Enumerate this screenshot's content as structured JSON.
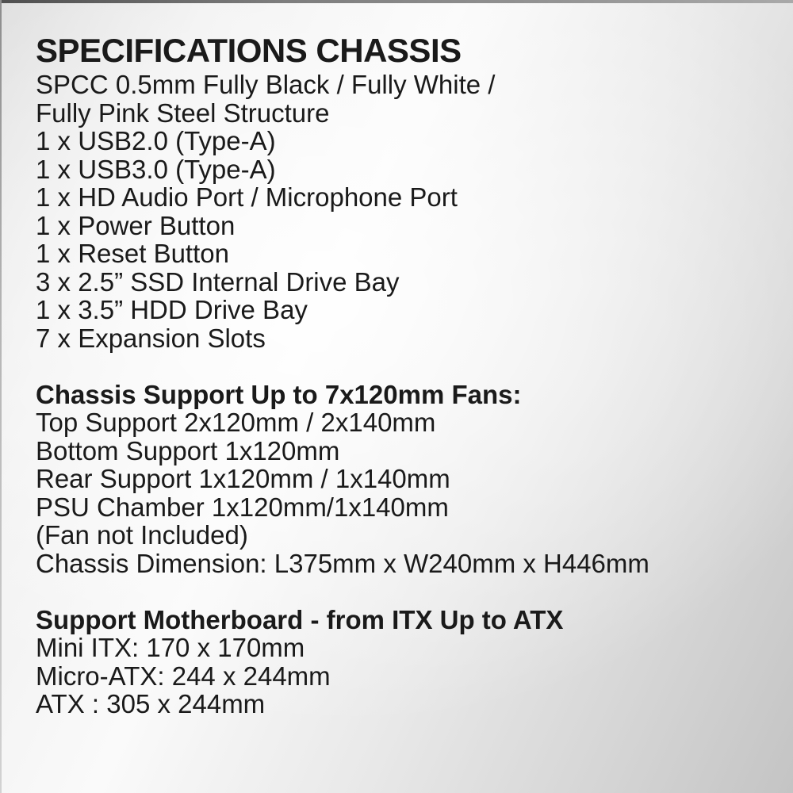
{
  "colors": {
    "text": "#1a1a1a",
    "background_light": "#fafafa",
    "background_dark": "#c4c4c4",
    "top_edge": "#4f4f4f"
  },
  "sections": {
    "chassis": {
      "title": "SPECIFICATIONS CHASSIS",
      "lines": [
        "SPCC 0.5mm Fully Black / Fully White /",
        "Fully Pink Steel Structure",
        "1 x USB2.0 (Type-A)",
        "1 x USB3.0 (Type-A)",
        "1 x HD Audio Port / Microphone Port",
        "1 x Power Button",
        "1 x Reset Button",
        "3 x 2.5” SSD Internal Drive Bay",
        "1 x 3.5” HDD Drive Bay",
        "7 x Expansion Slots"
      ]
    },
    "fans": {
      "header": "Chassis Support Up to 7x120mm Fans:",
      "lines": [
        "Top Support 2x120mm / 2x140mm",
        "Bottom Support 1x120mm",
        "Rear Support 1x120mm / 1x140mm",
        "PSU Chamber 1x120mm/1x140mm",
        "(Fan not Included)",
        "Chassis Dimension: L375mm x W240mm x H446mm"
      ]
    },
    "motherboard": {
      "header": "Support Motherboard - from ITX Up to ATX",
      "lines": [
        "Mini ITX: 170 x 170mm",
        "Micro-ATX: 244 x 244mm",
        "ATX : 305 x 244mm"
      ]
    }
  }
}
